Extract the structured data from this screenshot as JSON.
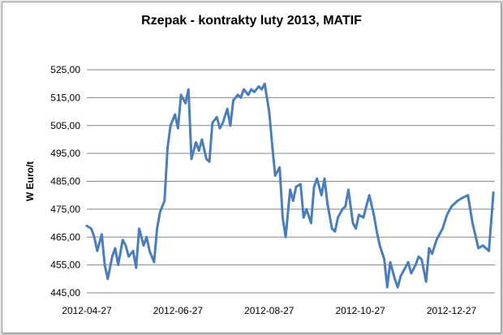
{
  "chart_data": {
    "type": "line",
    "title": "Rzepak - kontrakty luty 2013, MATIF",
    "xlabel": "",
    "ylabel": "W Euro/t",
    "ylim": [
      445,
      525
    ],
    "yticks": [
      "445,00",
      "455,00",
      "465,00",
      "475,00",
      "485,00",
      "495,00",
      "505,00",
      "515,00",
      "525,00"
    ],
    "xlim": [
      "2012-04-27",
      "2013-01-25"
    ],
    "xticks": [
      "2012-04-27",
      "2012-06-27",
      "2012-08-27",
      "2012-10-27",
      "2012-12-27"
    ],
    "grid": "horizontal",
    "line_color": "#4a7ebb",
    "series": [
      {
        "x": [
          "2012-04-27",
          "2012-04-30",
          "2012-05-02",
          "2012-05-04",
          "2012-05-07",
          "2012-05-09",
          "2012-05-11",
          "2012-05-14",
          "2012-05-16",
          "2012-05-18",
          "2012-05-21",
          "2012-05-23",
          "2012-05-25",
          "2012-05-28",
          "2012-05-30",
          "2012-06-01",
          "2012-06-04",
          "2012-06-06",
          "2012-06-08",
          "2012-06-11",
          "2012-06-13",
          "2012-06-15",
          "2012-06-18",
          "2012-06-20",
          "2012-06-22",
          "2012-06-25",
          "2012-06-27",
          "2012-06-29",
          "2012-07-02",
          "2012-07-04",
          "2012-07-06",
          "2012-07-09",
          "2012-07-11",
          "2012-07-13",
          "2012-07-16",
          "2012-07-18",
          "2012-07-20",
          "2012-07-23",
          "2012-07-25",
          "2012-07-27",
          "2012-07-30",
          "2012-08-01",
          "2012-08-03",
          "2012-08-06",
          "2012-08-08",
          "2012-08-10",
          "2012-08-13",
          "2012-08-15",
          "2012-08-17",
          "2012-08-20",
          "2012-08-22",
          "2012-08-24",
          "2012-08-27",
          "2012-08-29",
          "2012-08-31",
          "2012-09-03",
          "2012-09-05",
          "2012-09-07",
          "2012-09-10",
          "2012-09-12",
          "2012-09-14",
          "2012-09-17",
          "2012-09-19",
          "2012-09-21",
          "2012-09-24",
          "2012-09-26",
          "2012-09-28",
          "2012-10-01",
          "2012-10-03",
          "2012-10-05",
          "2012-10-08",
          "2012-10-10",
          "2012-10-12",
          "2012-10-15",
          "2012-10-17",
          "2012-10-19",
          "2012-10-22",
          "2012-10-24",
          "2012-10-26",
          "2012-10-29",
          "2012-10-31",
          "2012-11-02",
          "2012-11-05",
          "2012-11-07",
          "2012-11-09",
          "2012-11-12",
          "2012-11-14",
          "2012-11-16",
          "2012-11-19",
          "2012-11-21",
          "2012-11-23",
          "2012-11-26",
          "2012-11-28",
          "2012-11-30",
          "2012-12-03",
          "2012-12-05",
          "2012-12-07",
          "2012-12-10",
          "2012-12-12",
          "2012-12-14",
          "2012-12-17",
          "2012-12-19",
          "2012-12-21",
          "2012-12-24",
          "2012-12-27",
          "2012-12-31",
          "2013-01-03",
          "2013-01-07",
          "2013-01-10",
          "2013-01-14",
          "2013-01-17",
          "2013-01-21",
          "2013-01-24"
        ],
        "values": [
          469,
          468,
          465,
          460,
          466,
          455,
          450,
          458,
          461,
          455,
          464,
          462,
          458,
          460,
          454,
          468,
          462,
          465,
          460,
          456,
          468,
          474,
          478,
          497,
          505,
          509,
          504,
          516,
          513,
          518,
          493,
          499,
          496,
          500,
          493,
          492,
          506,
          508,
          504,
          506,
          511,
          505,
          514,
          516,
          515,
          518,
          516,
          518,
          517,
          519,
          518,
          520,
          510,
          498,
          487,
          490,
          472,
          465,
          482,
          478,
          483,
          484,
          472,
          475,
          470,
          483,
          486,
          480,
          486,
          477,
          468,
          467,
          472,
          475,
          476,
          482,
          470,
          468,
          473,
          472,
          476,
          480,
          473,
          467,
          462,
          457,
          447,
          456,
          450,
          447,
          451,
          454,
          456,
          452,
          455,
          458,
          457,
          449,
          461,
          459,
          464,
          466,
          468,
          473,
          476,
          478,
          479,
          480,
          470,
          461,
          462,
          460,
          481
        ]
      }
    ]
  }
}
